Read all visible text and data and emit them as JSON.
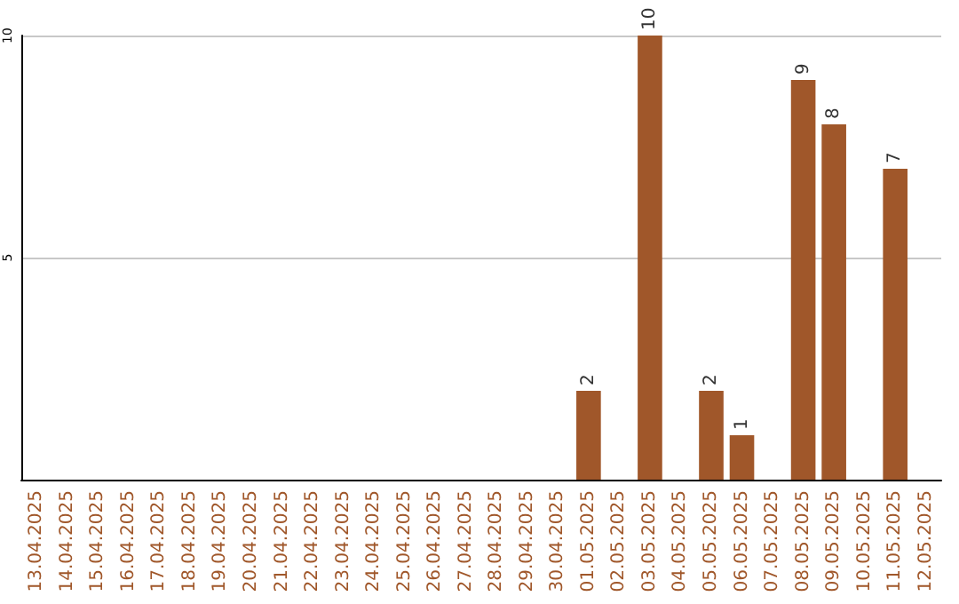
{
  "chart_data": {
    "type": "bar",
    "categories": [
      "13.04.2025",
      "14.04.2025",
      "15.04.2025",
      "16.04.2025",
      "17.04.2025",
      "18.04.2025",
      "19.04.2025",
      "20.04.2025",
      "21.04.2025",
      "22.04.2025",
      "23.04.2025",
      "24.04.2025",
      "25.04.2025",
      "26.04.2025",
      "27.04.2025",
      "28.04.2025",
      "29.04.2025",
      "30.04.2025",
      "01.05.2025",
      "02.05.2025",
      "03.05.2025",
      "04.05.2025",
      "05.05.2025",
      "06.05.2025",
      "07.05.2025",
      "08.05.2025",
      "09.05.2025",
      "10.05.2025",
      "11.05.2025",
      "12.05.2025"
    ],
    "values": [
      null,
      null,
      null,
      null,
      null,
      null,
      null,
      null,
      null,
      null,
      null,
      null,
      null,
      null,
      null,
      null,
      null,
      null,
      2,
      null,
      10,
      null,
      2,
      1,
      null,
      9,
      8,
      null,
      7,
      null
    ],
    "color": "#a0572a",
    "ylim": [
      0,
      10
    ],
    "yticks": [
      {
        "value": 0,
        "label": null
      },
      5,
      10
    ],
    "grid": "y",
    "data_labels": true
  }
}
